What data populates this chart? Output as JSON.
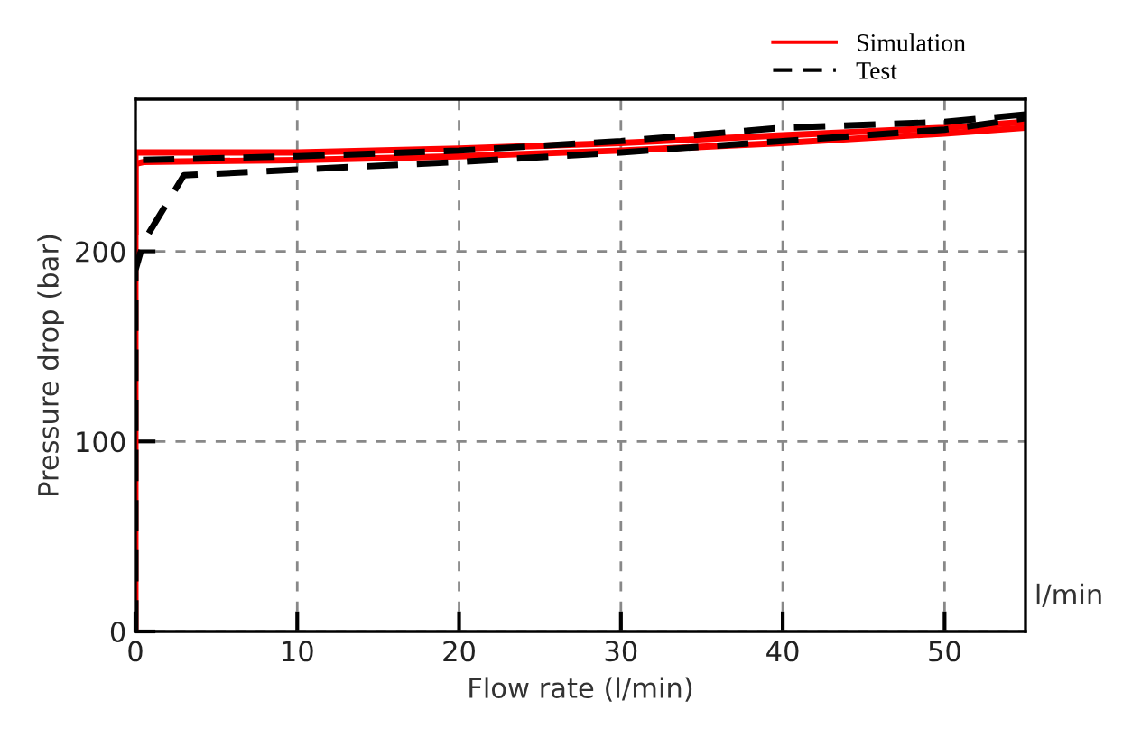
{
  "chart_data": {
    "type": "line",
    "xlabel": "Flow rate (l/min)",
    "ylabel": "Pressure drop (bar)",
    "xlim": [
      0,
      55
    ],
    "ylim": [
      0,
      280
    ],
    "xticks": [
      0,
      10,
      20,
      30,
      40,
      50
    ],
    "yticks": [
      0,
      100,
      200
    ],
    "grid": true,
    "legend": "top right",
    "annotations": [
      "l/min"
    ],
    "series": [
      {
        "name": "Simulation",
        "color": "#ff0000",
        "line_style": "solid",
        "x": [
          0,
          0,
          0.5,
          10,
          20,
          30,
          40,
          50,
          55
        ],
        "values": [
          0,
          246,
          247,
          248,
          250,
          253,
          257,
          262,
          265
        ]
      },
      {
        "color": "#ff0000",
        "line_style": "solid",
        "x": [
          55,
          50,
          40,
          30,
          20,
          10,
          0.5,
          0,
          0
        ],
        "values": [
          268,
          265,
          261,
          257,
          254,
          252,
          252,
          252,
          210
        ]
      },
      {
        "name": "Test",
        "color": "#000000",
        "line_style": "dashed",
        "x": [
          0,
          0,
          0.5,
          3,
          10,
          20,
          30,
          40,
          50,
          55
        ],
        "values": [
          0,
          190,
          205,
          240,
          243,
          247,
          252,
          258,
          264,
          270
        ]
      },
      {
        "color": "#000000",
        "line_style": "dashed",
        "x": [
          55,
          50,
          40,
          30,
          20,
          10,
          0
        ],
        "values": [
          272,
          268,
          265,
          258,
          253,
          250,
          248
        ]
      }
    ]
  }
}
